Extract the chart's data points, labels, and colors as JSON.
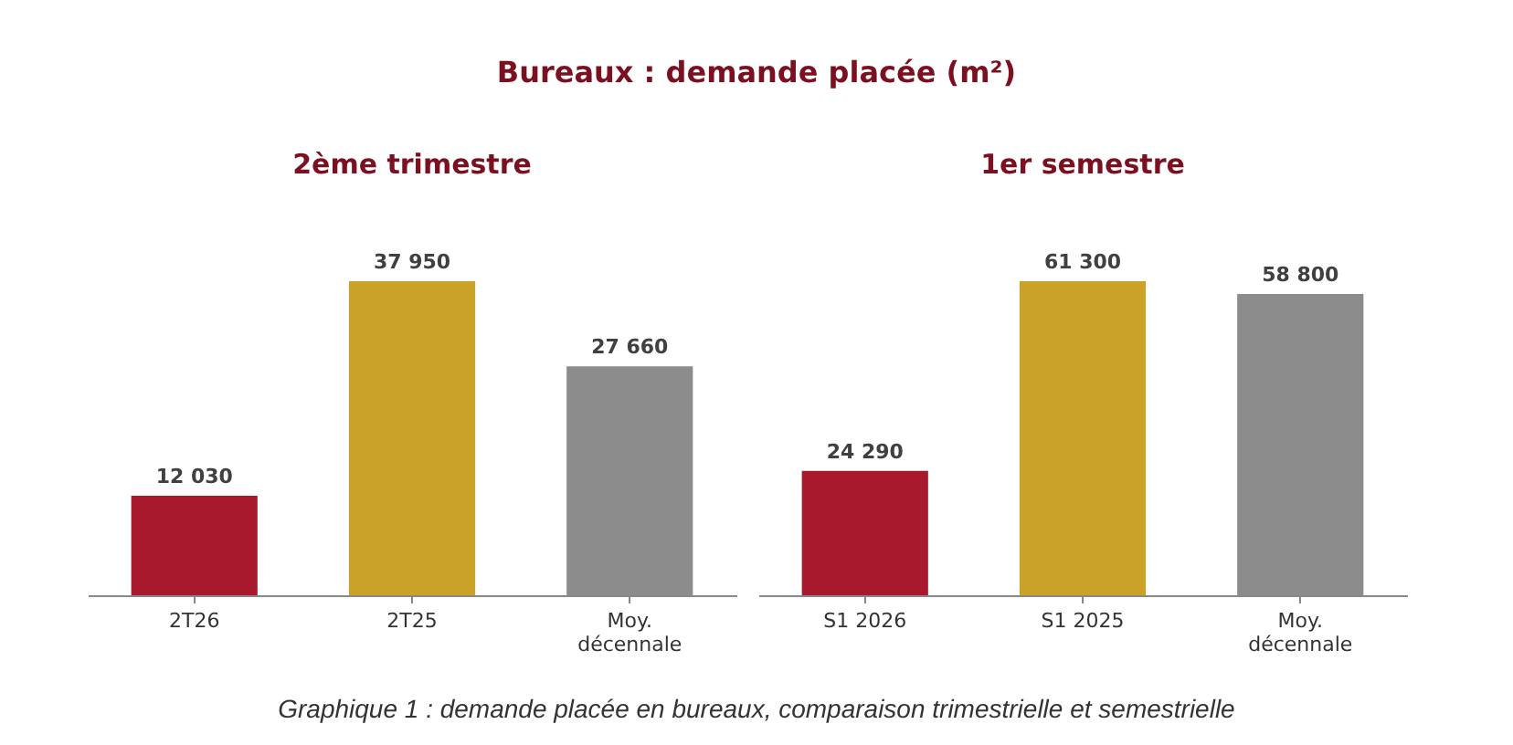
{
  "chart_data": [
    {
      "type": "bar",
      "title": "2ème trimestre",
      "annotations": [
        "Bureaux : demande placée (m²)",
        "Graphique 1 : demande placée en bureaux, comparaison trimestrielle et semestrielle"
      ],
      "categories": [
        "2T26",
        "2T25",
        "Moy.\ndécennale"
      ],
      "values": [
        12030,
        37950,
        27660
      ],
      "colors": [
        "#a8192e",
        "#c9a227",
        "#8c8c8c"
      ],
      "value_labels": [
        "12 030",
        "37 950",
        "27 660"
      ]
    },
    {
      "type": "bar",
      "title": "1er semestre",
      "categories": [
        "S1 2026",
        "S1 2025",
        "Moy.\ndécennale"
      ],
      "values": [
        24290,
        61300,
        58800
      ],
      "colors": [
        "#a8192e",
        "#c9a227",
        "#8c8c8c"
      ],
      "value_labels": [
        "24 290",
        "61 300",
        "58 800"
      ]
    }
  ]
}
